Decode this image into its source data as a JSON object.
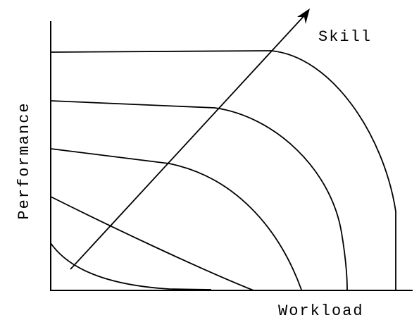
{
  "labels": {
    "arrow": "Skill",
    "y_axis": "Performance",
    "x_axis": "Workload"
  }
}
